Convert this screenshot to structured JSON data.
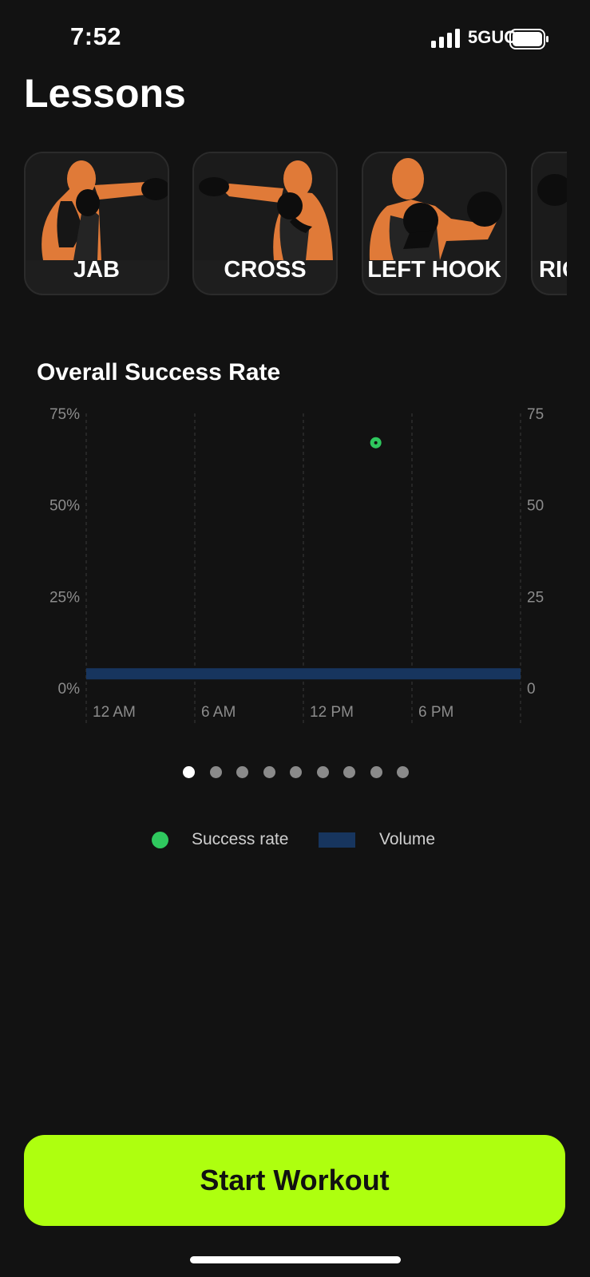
{
  "status_bar": {
    "time": "7:52",
    "network": "5GUC"
  },
  "page": {
    "title": "Lessons"
  },
  "lessons": [
    {
      "label": "JAB"
    },
    {
      "label": "CROSS"
    },
    {
      "label": "LEFT HOOK"
    },
    {
      "label": "RIG"
    }
  ],
  "chart_data": {
    "type": "scatter",
    "title": "Overall Success Rate",
    "x_tick_labels": [
      "12 AM",
      "6 AM",
      "12 PM",
      "6 PM"
    ],
    "y_left_ticks": [
      "0%",
      "25%",
      "50%",
      "75%"
    ],
    "y_right_ticks": [
      "0",
      "25",
      "50",
      "75"
    ],
    "ylim_left": [
      0,
      75
    ],
    "ylim_right": [
      0,
      75
    ],
    "xlim_hours": [
      0,
      24
    ],
    "series": [
      {
        "name": "Success rate",
        "kind": "point",
        "points": [
          {
            "x_hour": 16,
            "y": 67
          }
        ]
      },
      {
        "name": "Volume",
        "kind": "bar",
        "values": [
          3
        ]
      }
    ],
    "grid": "vertical dashed",
    "legend_position": "bottom-center"
  },
  "pager": {
    "count": 9,
    "active": 0
  },
  "legend": {
    "success_rate": "Success rate",
    "volume": "Volume"
  },
  "colors": {
    "background": "#121212",
    "accent": "#aeff0f",
    "success_rate": "#2fc85e",
    "volume": "#17355e",
    "skin": "#e07a38"
  },
  "action": {
    "start_label": "Start Workout"
  }
}
